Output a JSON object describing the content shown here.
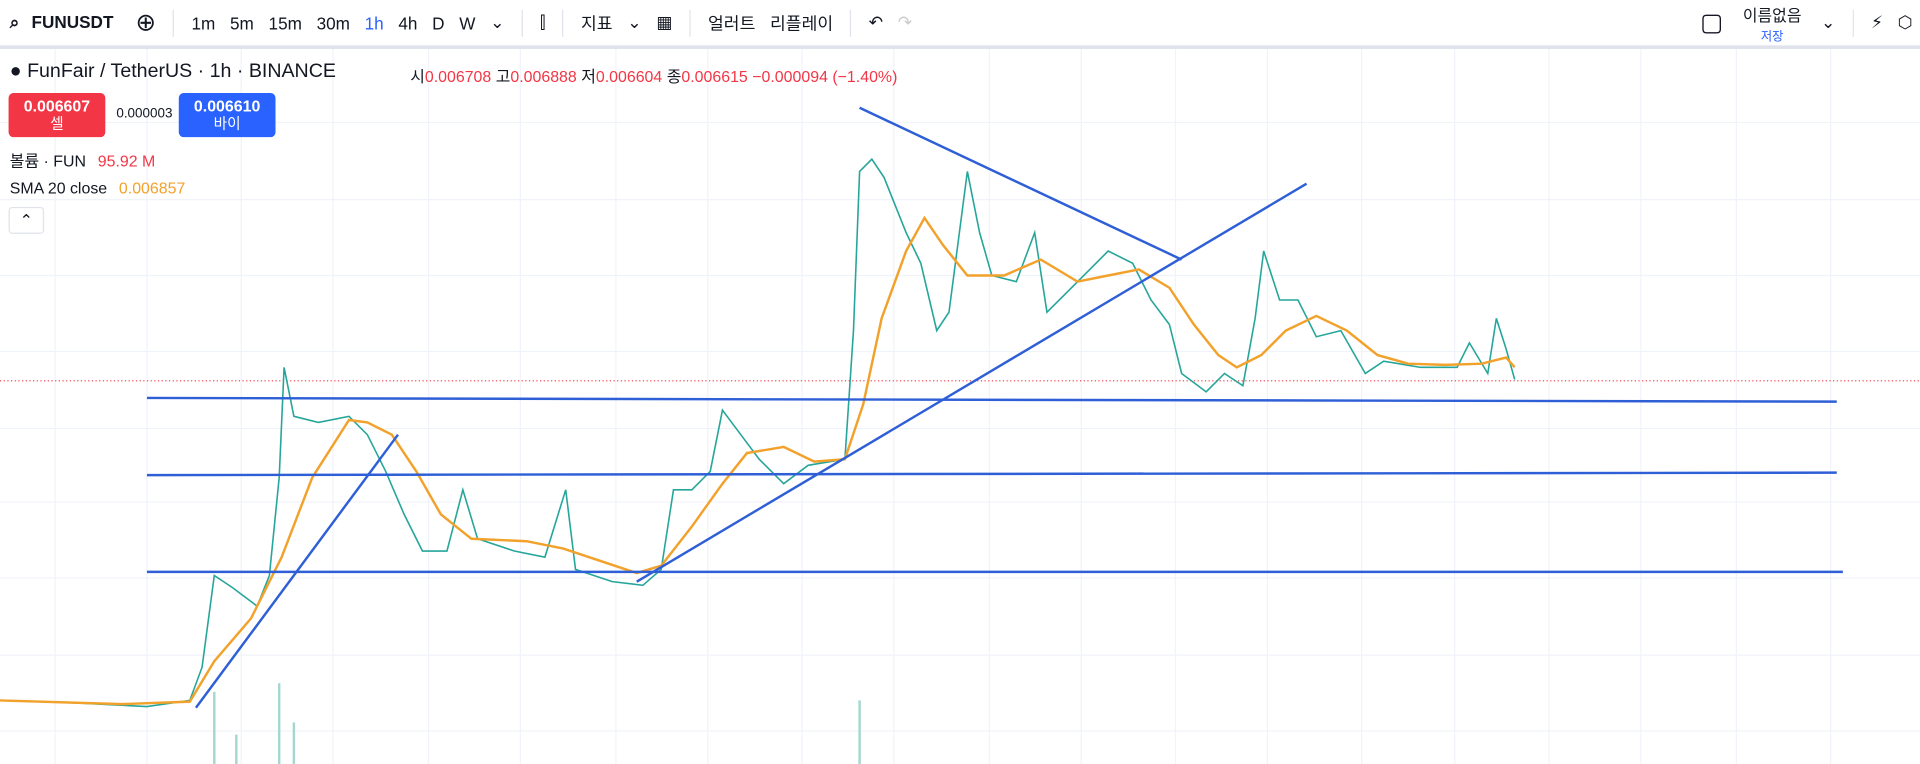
{
  "toolbar": {
    "symbol": "FUNUSDT",
    "intervals": [
      "1m",
      "5m",
      "15m",
      "30m",
      "1h",
      "4h",
      "D",
      "W"
    ],
    "indicators": "지표",
    "alert": "얼러트",
    "replay": "리플레이",
    "user": "이름없음",
    "save": "저장"
  },
  "legend": {
    "title": "FunFair / TetherUS · 1h · BINANCE",
    "ohlc": [
      {
        "label": "시",
        "value": "0.006708"
      },
      {
        "label": "고",
        "value": "0.006888"
      },
      {
        "label": "저",
        "value": "0.006604"
      },
      {
        "label": "종",
        "value": "0.006615"
      }
    ],
    "change": "−0.000094 (−1.40%)",
    "sell": {
      "price": "0.006607",
      "label": "셀"
    },
    "spread": "0.000003",
    "buy": {
      "price": "0.006610",
      "label": "바이"
    },
    "volume": {
      "label": "볼륨 · FUN",
      "value": "95.92 M"
    },
    "sma": {
      "label": "SMA 20 close",
      "value": "0.006857"
    }
  }
}
